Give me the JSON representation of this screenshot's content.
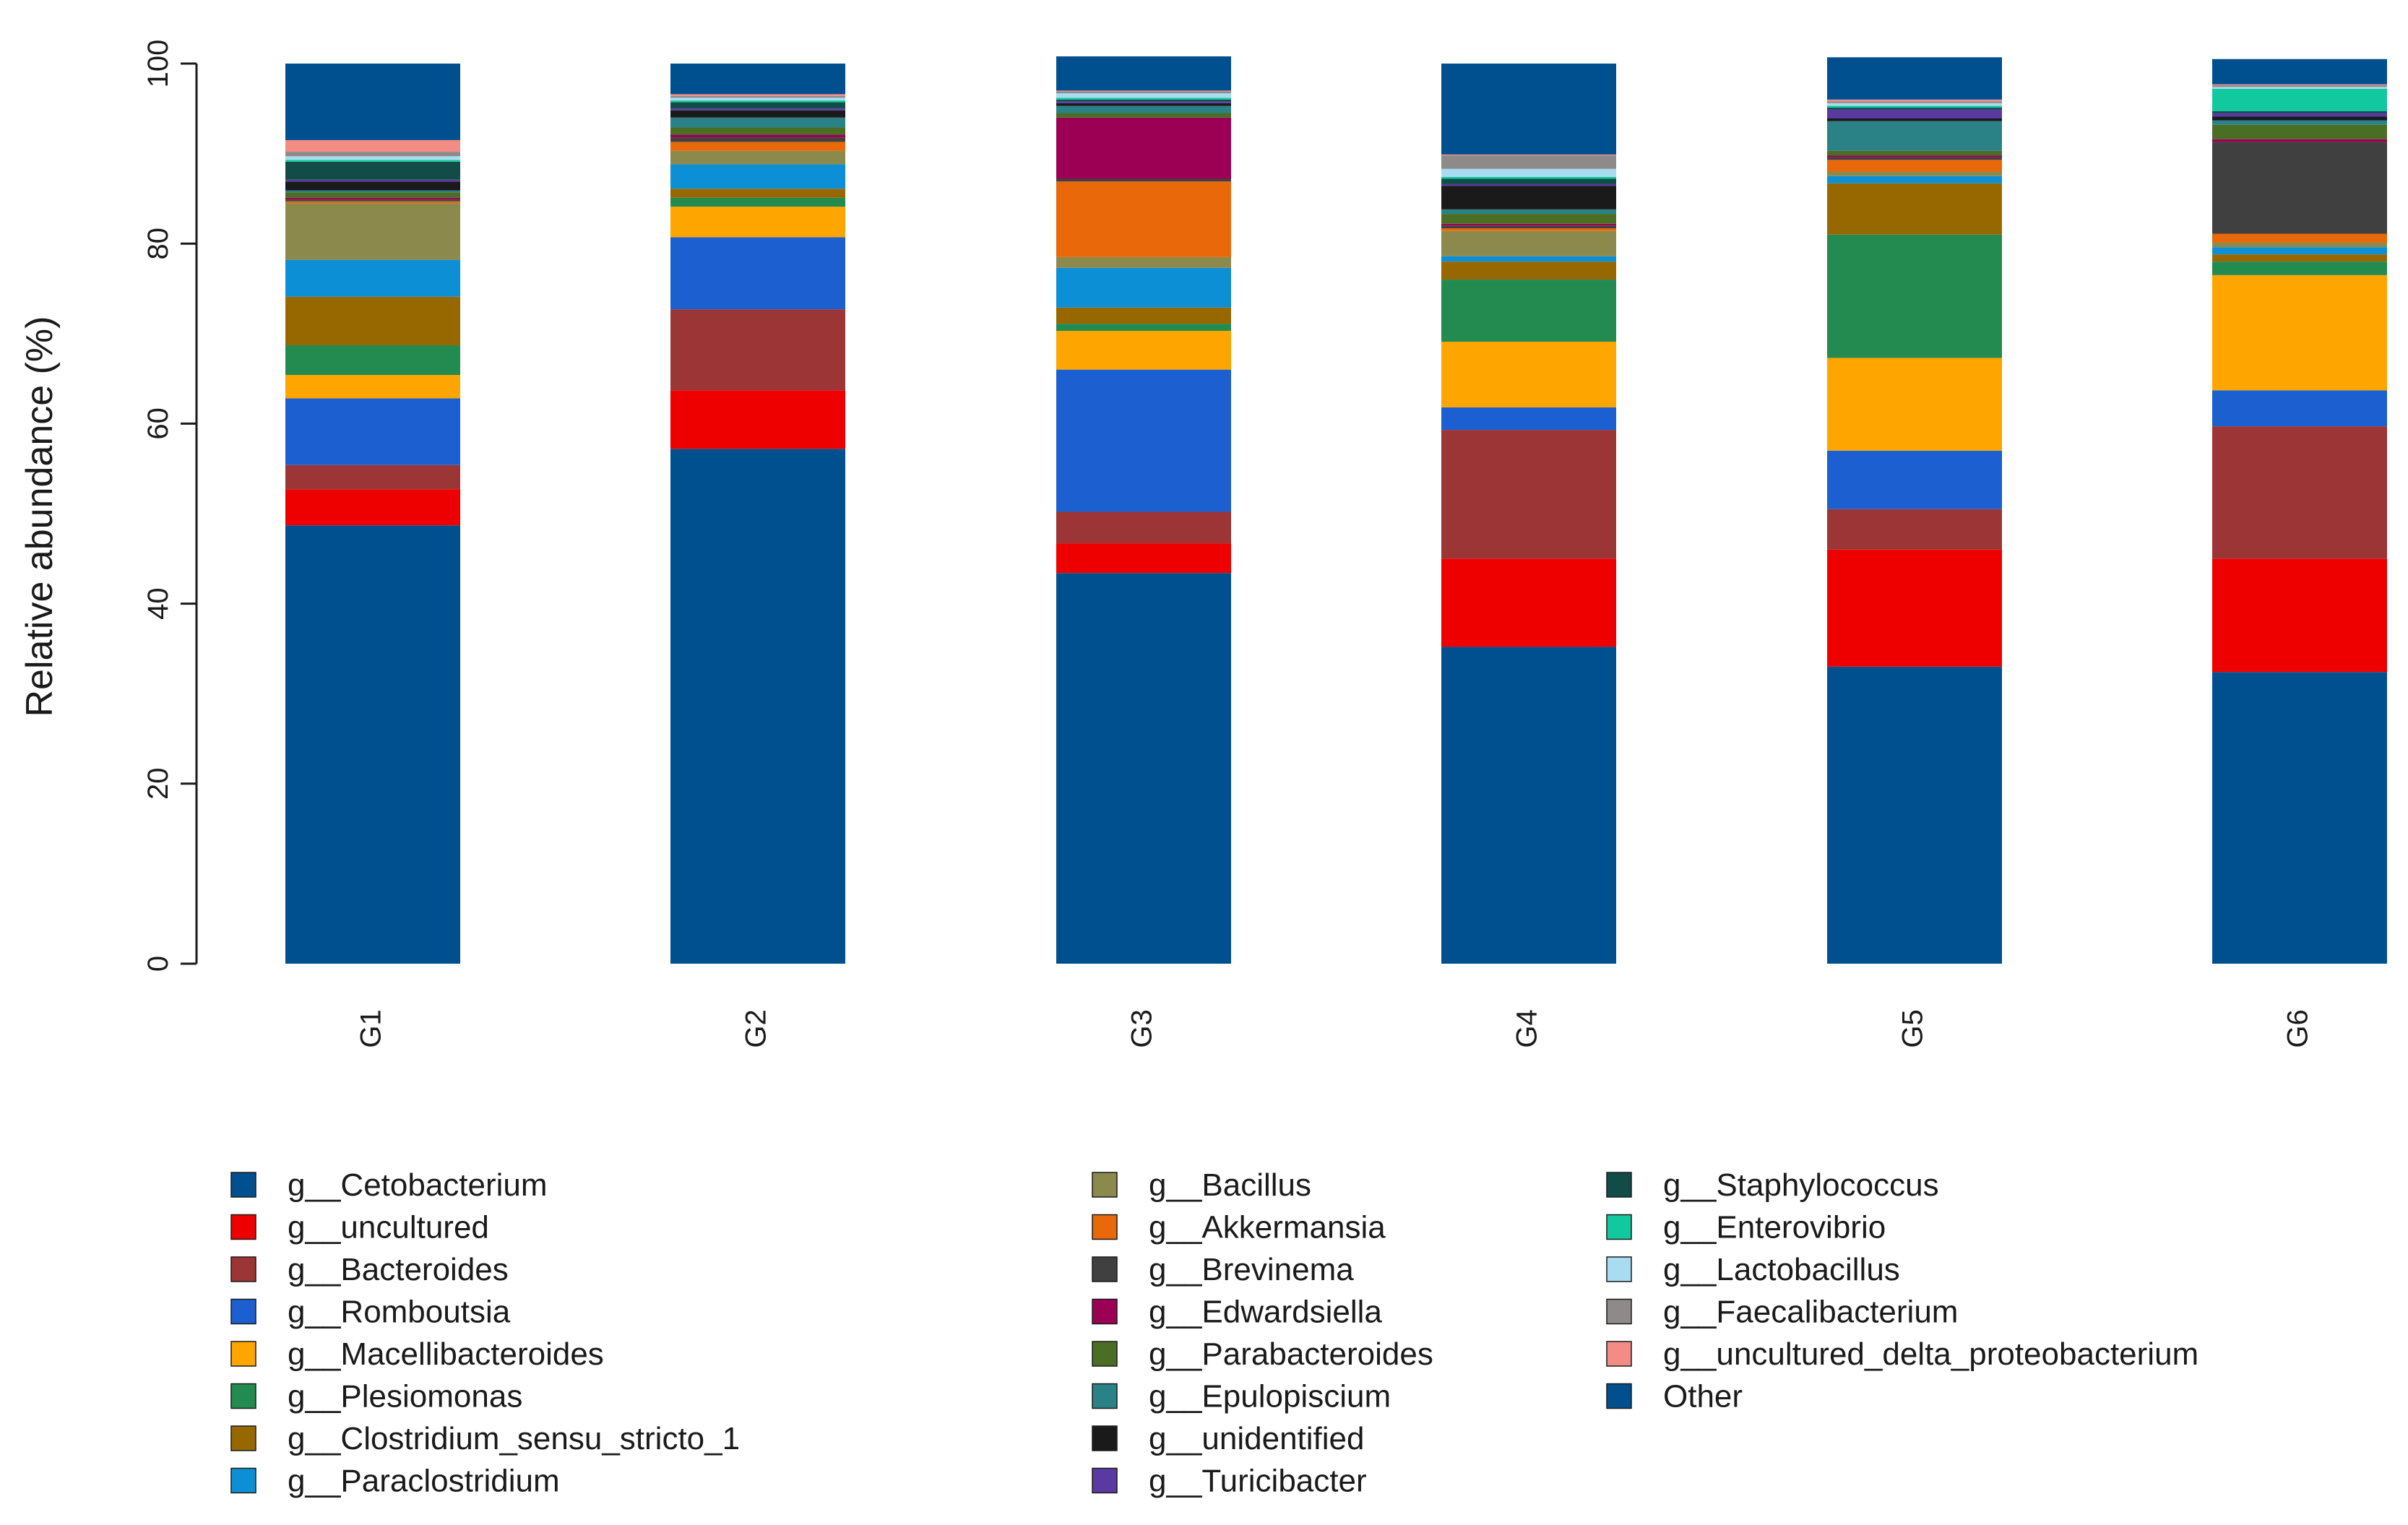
{
  "chart_data": {
    "type": "bar",
    "stacked": true,
    "title": "",
    "xlabel": "",
    "ylabel": "Relative abundance (%)",
    "ylim": [
      0,
      100
    ],
    "yticks": [
      0,
      20,
      40,
      60,
      80,
      100
    ],
    "categories": [
      "G1",
      "G2",
      "G3",
      "G4",
      "G5",
      "G6"
    ],
    "series": [
      {
        "name": "g__Cetobacterium",
        "color": "#004f8f",
        "values": [
          48.7,
          57.2,
          43.4,
          35.2,
          33.0,
          32.4
        ]
      },
      {
        "name": "g__uncultured",
        "color": "#ee0000",
        "values": [
          4.0,
          6.5,
          3.3,
          9.8,
          13.0,
          12.6
        ]
      },
      {
        "name": "g__Bacteroides",
        "color": "#9c3535",
        "values": [
          2.7,
          9.0,
          3.5,
          14.3,
          4.5,
          14.7
        ]
      },
      {
        "name": "g__Romboutsia",
        "color": "#1c5fd0",
        "values": [
          7.4,
          8.0,
          15.8,
          2.5,
          6.5,
          4.0
        ]
      },
      {
        "name": "g__Macellibacteroides",
        "color": "#ffa500",
        "values": [
          2.6,
          3.4,
          4.3,
          7.3,
          10.3,
          12.8
        ]
      },
      {
        "name": "g__Plesiomonas",
        "color": "#238b50",
        "values": [
          3.3,
          1.0,
          0.8,
          6.9,
          13.7,
          1.5
        ]
      },
      {
        "name": "g__Clostridium_sensu_stricto_1",
        "color": "#986800",
        "values": [
          5.4,
          1.0,
          1.8,
          2.0,
          5.7,
          0.8
        ]
      },
      {
        "name": "g__Paraclostridium",
        "color": "#0d8fd5",
        "values": [
          4.1,
          2.7,
          4.4,
          0.6,
          0.8,
          0.8
        ]
      },
      {
        "name": "g__Bacillus",
        "color": "#8b8a4c",
        "values": [
          6.3,
          1.5,
          1.2,
          2.8,
          0.5,
          0.5
        ]
      },
      {
        "name": "g__Akkermansia",
        "color": "#e8680a",
        "values": [
          0.2,
          1.0,
          8.4,
          0.3,
          1.3,
          1.0
        ]
      },
      {
        "name": "g__Brevinema",
        "color": "#404040",
        "values": [
          0.2,
          0.5,
          0.3,
          0.3,
          0.3,
          10.2
        ]
      },
      {
        "name": "g__Edwardsiella",
        "color": "#9c0055",
        "values": [
          0.2,
          0.3,
          6.8,
          0.2,
          0.2,
          0.3
        ]
      },
      {
        "name": "g__Parabacteroides",
        "color": "#4a6e23",
        "values": [
          0.6,
          0.8,
          0.5,
          1.1,
          0.5,
          1.6
        ]
      },
      {
        "name": "g__Epulopiscium",
        "color": "#2a8287",
        "values": [
          0.2,
          1.1,
          0.8,
          0.5,
          3.3,
          0.5
        ]
      },
      {
        "name": "g__unidentified",
        "color": "#1a1a1a",
        "values": [
          1.0,
          0.8,
          0.3,
          2.6,
          0.3,
          0.4
        ]
      },
      {
        "name": "g__Turicibacter",
        "color": "#5a3aa0",
        "values": [
          0.2,
          0.2,
          0.2,
          0.2,
          1.0,
          0.4
        ]
      },
      {
        "name": "g__Staphylococcus",
        "color": "#124c48",
        "values": [
          2.0,
          0.7,
          0.2,
          0.6,
          0.2,
          0.2
        ]
      },
      {
        "name": "g__Enterovibrio",
        "color": "#12c89e",
        "values": [
          0.2,
          0.2,
          0.2,
          0.2,
          0.2,
          2.5
        ]
      },
      {
        "name": "g__Lactobacillus",
        "color": "#a8dcf0",
        "values": [
          0.4,
          0.3,
          0.5,
          0.9,
          0.3,
          0.2
        ]
      },
      {
        "name": "g__Faecalibacterium",
        "color": "#8f8a8a",
        "values": [
          0.5,
          0.2,
          0.2,
          1.5,
          0.2,
          0.2
        ]
      },
      {
        "name": "g__uncultured_delta_proteobacterium",
        "color": "#f28c84",
        "values": [
          1.3,
          0.2,
          0.1,
          0.1,
          0.2,
          0.1
        ]
      },
      {
        "name": "Other",
        "color": "#004f8f",
        "values": [
          8.5,
          3.4,
          3.8,
          10.1,
          4.7,
          2.8
        ]
      }
    ]
  }
}
